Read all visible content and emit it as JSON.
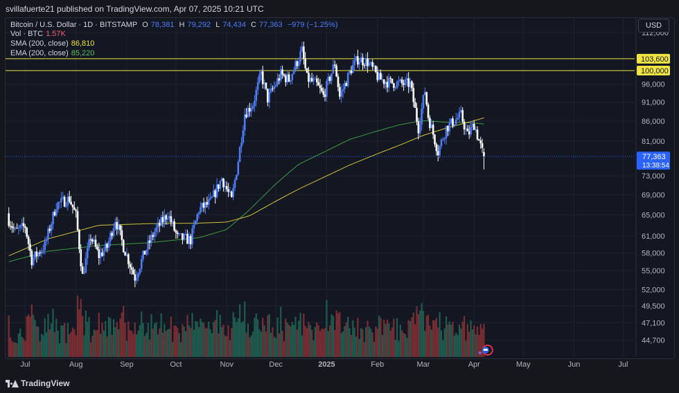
{
  "header": {
    "published_line": "svillafuerte21 published on TradingView.com, Apr 07, 2025 10:21 UTC"
  },
  "legend": {
    "symbol": "Bitcoin / U.S. Dollar · 1D · BITSTAMP",
    "o_label": "O",
    "o_value": "78,381",
    "h_label": "H",
    "h_value": "79,292",
    "l_label": "L",
    "l_value": "74,434",
    "c_label": "C",
    "c_value": "77,363",
    "change": "−979 (−1.25%)",
    "vol_label": "Vol · BTC",
    "vol_value": "1.57K",
    "sma_label": "SMA (200, close)",
    "sma_value": "86,810",
    "ema_label": "EMA (200, close)",
    "ema_value": "85,220"
  },
  "currency_button": "USD",
  "footer": {
    "brand": "TradingView"
  },
  "colors": {
    "up": "#4f7bf7",
    "down": "#ffffff",
    "sma": "#d4c13a",
    "ema": "#3f9b45",
    "hline": "#f0e442",
    "price_label": "#2962ff",
    "vol_up": "#1f5c4f",
    "vol_down": "#7a2e34"
  },
  "chart_data": {
    "type": "candlestick",
    "y_axis": {
      "scale": "log",
      "ticks": [
        "112,000",
        "103,600",
        "100,000",
        "96,000",
        "91,000",
        "86,000",
        "81,000",
        "77,363",
        "73,000",
        "69,000",
        "65,000",
        "61,000",
        "58,000",
        "55,000",
        "52,000",
        "49,500",
        "47,100",
        "44,700"
      ],
      "tick_values": [
        112000,
        96000,
        91000,
        86000,
        81000,
        73000,
        69000,
        65000,
        61000,
        58000,
        55000,
        52000,
        49500,
        47100,
        44700
      ],
      "range": [
        42500,
        117000
      ]
    },
    "x_axis": {
      "ticks": [
        "Jul",
        "Aug",
        "Sep",
        "Oct",
        "Nov",
        "Dec",
        "2025",
        "Feb",
        "Mar",
        "Apr",
        "May",
        "Jun",
        "Jul"
      ],
      "bold_tick": "2025",
      "tick_dates": [
        "2024-07-01",
        "2024-08-01",
        "2024-09-01",
        "2024-10-01",
        "2024-11-01",
        "2024-12-01",
        "2025-01-01",
        "2025-02-01",
        "2025-03-01",
        "2025-04-01",
        "2025-05-01",
        "2025-06-01",
        "2025-07-01"
      ]
    },
    "horizontal_lines": [
      {
        "value": 103600,
        "label": "103,600"
      },
      {
        "value": 100000,
        "label": "100,000"
      }
    ],
    "last_price": {
      "value": 77363,
      "label": "77,363",
      "countdown": "13:38:54"
    },
    "series_close_anchors": [
      [
        "2024-06-21",
        64000
      ],
      [
        "2024-06-25",
        61800
      ],
      [
        "2024-07-01",
        62800
      ],
      [
        "2024-07-05",
        56800
      ],
      [
        "2024-07-13",
        59300
      ],
      [
        "2024-07-20",
        67000
      ],
      [
        "2024-07-28",
        68200
      ],
      [
        "2024-08-01",
        64800
      ],
      [
        "2024-08-05",
        54100
      ],
      [
        "2024-08-10",
        60900
      ],
      [
        "2024-08-15",
        57500
      ],
      [
        "2024-08-20",
        59000
      ],
      [
        "2024-08-25",
        64200
      ],
      [
        "2024-08-30",
        59100
      ],
      [
        "2024-09-06",
        53900
      ],
      [
        "2024-09-12",
        58100
      ],
      [
        "2024-09-18",
        61800
      ],
      [
        "2024-09-26",
        65200
      ],
      [
        "2024-10-02",
        60700
      ],
      [
        "2024-10-10",
        60300
      ],
      [
        "2024-10-15",
        66000
      ],
      [
        "2024-10-22",
        67400
      ],
      [
        "2024-10-29",
        72500
      ],
      [
        "2024-11-04",
        67800
      ],
      [
        "2024-11-08",
        76500
      ],
      [
        "2024-11-12",
        88000
      ],
      [
        "2024-11-17",
        90500
      ],
      [
        "2024-11-22",
        99000
      ],
      [
        "2024-11-26",
        91900
      ],
      [
        "2024-12-04",
        98800
      ],
      [
        "2024-12-09",
        97300
      ],
      [
        "2024-12-17",
        106100
      ],
      [
        "2024-12-20",
        97700
      ],
      [
        "2024-12-26",
        95800
      ],
      [
        "2024-12-30",
        92700
      ],
      [
        "2025-01-06",
        102200
      ],
      [
        "2025-01-09",
        92500
      ],
      [
        "2025-01-16",
        100500
      ],
      [
        "2025-01-20",
        103500
      ],
      [
        "2025-01-26",
        102600
      ],
      [
        "2025-02-02",
        97600
      ],
      [
        "2025-02-08",
        96500
      ],
      [
        "2025-02-16",
        96100
      ],
      [
        "2025-02-21",
        96100
      ],
      [
        "2025-02-26",
        84300
      ],
      [
        "2025-03-02",
        94200
      ],
      [
        "2025-03-04",
        87200
      ],
      [
        "2025-03-10",
        78500
      ],
      [
        "2025-03-15",
        84300
      ],
      [
        "2025-03-24",
        87500
      ],
      [
        "2025-03-28",
        82400
      ],
      [
        "2025-04-01",
        85200
      ],
      [
        "2025-04-06",
        78400
      ],
      [
        "2025-04-07",
        77363
      ]
    ],
    "sma_200_anchors": [
      [
        "2024-06-21",
        57500
      ],
      [
        "2024-07-15",
        60500
      ],
      [
        "2024-08-15",
        63000
      ],
      [
        "2024-09-15",
        63300
      ],
      [
        "2024-10-15",
        63400
      ],
      [
        "2024-11-01",
        63600
      ],
      [
        "2024-11-15",
        64800
      ],
      [
        "2024-12-01",
        67700
      ],
      [
        "2024-12-15",
        70200
      ],
      [
        "2025-01-01",
        73000
      ],
      [
        "2025-01-15",
        75400
      ],
      [
        "2025-02-01",
        78000
      ],
      [
        "2025-02-15",
        80100
      ],
      [
        "2025-03-01",
        82400
      ],
      [
        "2025-03-15",
        84200
      ],
      [
        "2025-04-01",
        86100
      ],
      [
        "2025-04-07",
        86810
      ]
    ],
    "ema_200_anchors": [
      [
        "2024-06-21",
        56500
      ],
      [
        "2024-07-15",
        58300
      ],
      [
        "2024-08-15",
        59300
      ],
      [
        "2024-09-15",
        59800
      ],
      [
        "2024-10-15",
        60700
      ],
      [
        "2024-11-01",
        62200
      ],
      [
        "2024-11-15",
        66000
      ],
      [
        "2024-12-01",
        71300
      ],
      [
        "2024-12-15",
        75600
      ],
      [
        "2025-01-01",
        78700
      ],
      [
        "2025-01-15",
        81400
      ],
      [
        "2025-02-01",
        83500
      ],
      [
        "2025-02-15",
        85100
      ],
      [
        "2025-03-01",
        86100
      ],
      [
        "2025-03-15",
        85700
      ],
      [
        "2025-04-01",
        85500
      ],
      [
        "2025-04-07",
        85220
      ]
    ],
    "date_range": [
      "2024-06-19",
      "2025-07-08"
    ]
  }
}
